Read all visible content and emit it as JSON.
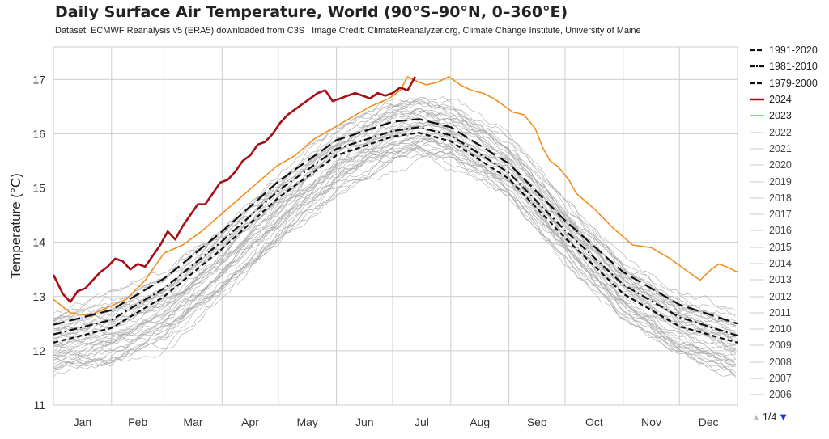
{
  "title": "Daily Surface Air Temperature, World (90°S–90°N, 0–360°E)",
  "subtitle": "Dataset: ECMWF Reanalysis v5 (ERA5) downloaded from C3S | Image Credit: ClimateReanalyzer.org, Climate Change Institute, University of Maine",
  "legend": {
    "items": [
      {
        "label": "1991-2020",
        "style": "mean1991"
      },
      {
        "label": "1981-2010",
        "style": "mean1981"
      },
      {
        "label": "1979-2000",
        "style": "mean1979"
      },
      {
        "label": "2024",
        "style": "y2024"
      },
      {
        "label": "2023",
        "style": "y2023"
      },
      {
        "label": "2022",
        "style": "grey"
      },
      {
        "label": "2021",
        "style": "grey"
      },
      {
        "label": "2020",
        "style": "grey"
      },
      {
        "label": "2019",
        "style": "grey"
      },
      {
        "label": "2018",
        "style": "grey"
      },
      {
        "label": "2017",
        "style": "grey"
      },
      {
        "label": "2016",
        "style": "grey"
      },
      {
        "label": "2015",
        "style": "grey"
      },
      {
        "label": "2014",
        "style": "grey"
      },
      {
        "label": "2013",
        "style": "grey"
      },
      {
        "label": "2012",
        "style": "grey"
      },
      {
        "label": "2011",
        "style": "grey"
      },
      {
        "label": "2010",
        "style": "grey"
      },
      {
        "label": "2009",
        "style": "grey"
      },
      {
        "label": "2008",
        "style": "grey"
      },
      {
        "label": "2007",
        "style": "grey"
      },
      {
        "label": "2006",
        "style": "grey"
      }
    ],
    "pager": "1/4",
    "up_icon": "triangle-up-icon",
    "down_icon": "triangle-down-icon"
  },
  "chart_data": {
    "type": "line",
    "title": "Daily Surface Air Temperature, World (90°S–90°N, 0–360°E)",
    "ylabel": "Temperature (°C)",
    "xlabel": "",
    "ylim": [
      11,
      17.6
    ],
    "yticks": [
      11,
      12,
      13,
      14,
      15,
      16,
      17
    ],
    "xlim": [
      1,
      366
    ],
    "month_labels": [
      "Jan",
      "Feb",
      "Mar",
      "Apr",
      "May",
      "Jun",
      "Jul",
      "Aug",
      "Sep",
      "Oct",
      "Nov",
      "Dec"
    ],
    "grid": true,
    "legend_position": "right",
    "colors": {
      "y2024": "#a50f15",
      "y2023": "#f28e1c",
      "mean": "#111111",
      "history": "#a8a8a8",
      "grid": "#cccccc"
    },
    "series": [
      {
        "name": "1991-2020",
        "style": "mean1991",
        "x": [
          1,
          32,
          60,
          91,
          121,
          152,
          182,
          196,
          213,
          244,
          274,
          305,
          335,
          366
        ],
        "y": [
          12.48,
          12.75,
          13.33,
          14.2,
          15.12,
          15.88,
          16.22,
          16.27,
          16.12,
          15.45,
          14.4,
          13.45,
          12.85,
          12.5
        ]
      },
      {
        "name": "1981-2010",
        "style": "mean1981",
        "x": [
          1,
          32,
          60,
          91,
          121,
          152,
          182,
          196,
          213,
          244,
          274,
          305,
          335,
          366
        ],
        "y": [
          12.3,
          12.57,
          13.15,
          14.02,
          14.95,
          15.72,
          16.05,
          16.12,
          15.97,
          15.28,
          14.22,
          13.22,
          12.62,
          12.28
        ]
      },
      {
        "name": "1979-2000",
        "style": "mean1979",
        "x": [
          1,
          32,
          60,
          91,
          121,
          152,
          182,
          196,
          213,
          244,
          274,
          305,
          335,
          366
        ],
        "y": [
          12.15,
          12.42,
          13.0,
          13.88,
          14.82,
          15.6,
          15.95,
          16.02,
          15.86,
          15.17,
          14.08,
          13.05,
          12.45,
          12.15
        ]
      },
      {
        "name": "2024",
        "style": "y2024",
        "x": [
          1,
          6,
          10,
          14,
          18,
          22,
          26,
          30,
          34,
          38,
          42,
          46,
          50,
          54,
          58,
          62,
          66,
          70,
          74,
          78,
          82,
          86,
          90,
          94,
          98,
          102,
          106,
          110,
          114,
          118,
          122,
          126,
          130,
          134,
          138,
          142,
          146,
          150,
          154,
          158,
          162,
          166,
          170,
          174,
          178,
          182,
          186,
          190,
          194
        ],
        "y": [
          13.4,
          13.05,
          12.9,
          13.1,
          13.15,
          13.3,
          13.45,
          13.55,
          13.7,
          13.65,
          13.5,
          13.6,
          13.55,
          13.75,
          13.95,
          14.2,
          14.05,
          14.3,
          14.5,
          14.7,
          14.7,
          14.9,
          15.1,
          15.15,
          15.3,
          15.5,
          15.6,
          15.8,
          15.85,
          16.0,
          16.2,
          16.35,
          16.45,
          16.55,
          16.65,
          16.75,
          16.8,
          16.6,
          16.65,
          16.7,
          16.75,
          16.7,
          16.65,
          16.75,
          16.7,
          16.75,
          16.85,
          16.8,
          17.05
        ]
      },
      {
        "name": "2023",
        "style": "y2023",
        "x": [
          1,
          10,
          20,
          30,
          40,
          50,
          60,
          70,
          80,
          90,
          100,
          110,
          120,
          130,
          140,
          150,
          160,
          170,
          180,
          186,
          190,
          196,
          200,
          206,
          212,
          218,
          224,
          230,
          236,
          240,
          246,
          252,
          258,
          262,
          266,
          270,
          276,
          280,
          290,
          300,
          310,
          320,
          330,
          340,
          346,
          352,
          356,
          360,
          366
        ],
        "y": [
          12.95,
          12.7,
          12.65,
          12.8,
          12.95,
          13.3,
          13.8,
          13.95,
          14.2,
          14.5,
          14.8,
          15.1,
          15.4,
          15.6,
          15.9,
          16.1,
          16.3,
          16.5,
          16.65,
          16.8,
          17.05,
          16.95,
          16.9,
          16.95,
          17.05,
          16.9,
          16.8,
          16.75,
          16.65,
          16.55,
          16.4,
          16.35,
          16.1,
          15.75,
          15.5,
          15.4,
          15.15,
          14.9,
          14.6,
          14.25,
          13.95,
          13.9,
          13.7,
          13.45,
          13.3,
          13.5,
          13.6,
          13.55,
          13.45
        ]
      }
    ],
    "history_band": {
      "note": "grey traces for earlier years 1940-2022",
      "x": [
        1,
        32,
        60,
        91,
        121,
        152,
        182,
        196,
        213,
        244,
        274,
        305,
        335,
        366
      ],
      "low": [
        11.45,
        11.6,
        12.0,
        12.9,
        13.9,
        14.8,
        15.3,
        15.4,
        15.3,
        14.7,
        13.6,
        12.5,
        11.8,
        11.4
      ],
      "high": [
        13.0,
        13.3,
        13.7,
        14.6,
        15.5,
        16.4,
        16.9,
        17.0,
        16.9,
        16.2,
        15.0,
        13.9,
        13.3,
        12.9
      ]
    }
  }
}
